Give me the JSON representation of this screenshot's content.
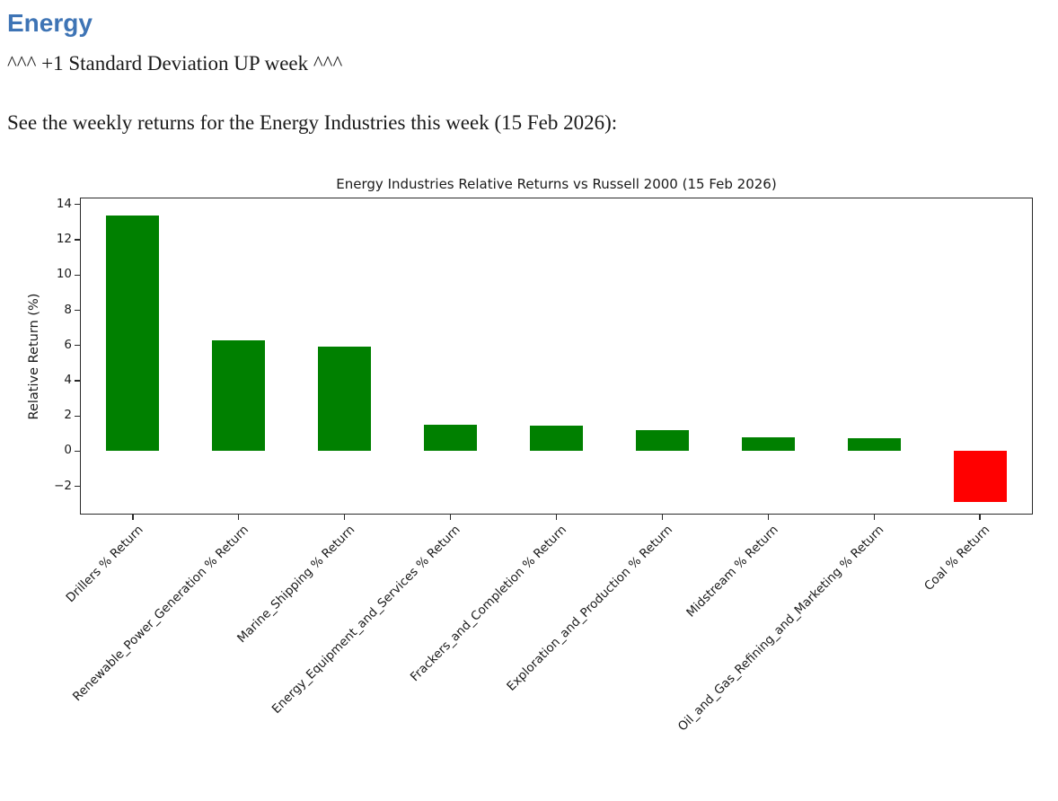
{
  "document": {
    "heading": "Energy",
    "stddev_line": "^^^ +1 Standard Deviation UP week ^^^",
    "intro_line": "See the weekly returns for the Energy Industries this week (15 Feb 2026):"
  },
  "colors": {
    "heading_blue": "#3E74B5",
    "positive_green": "#008000",
    "negative_red": "#FF0000",
    "axis": "#2a2a2a",
    "text": "#1a1a1a"
  },
  "chart_data": {
    "type": "bar",
    "title": "Energy Industries Relative Returns vs Russell 2000 (15 Feb 2026)",
    "xlabel": "",
    "ylabel": "Relative Return (%)",
    "categories": [
      "Drillers % Return",
      "Renewable_Power_Generation % Return",
      "Marine_Shipping % Return",
      "Energy_Equipment_and_Services % Return",
      "Frackers_and_Completion % Return",
      "Exploration_and_Production % Return",
      "Midstream % Return",
      "Oil_and_Gas_Refining_and_Marketing % Return",
      "Coal % Return"
    ],
    "values": [
      13.4,
      6.3,
      5.95,
      1.5,
      1.45,
      1.2,
      0.8,
      0.75,
      -2.9
    ],
    "bar_colors": [
      "#008000",
      "#008000",
      "#008000",
      "#008000",
      "#008000",
      "#008000",
      "#008000",
      "#008000",
      "#FF0000"
    ],
    "ylim": [
      -3.6,
      14.4
    ],
    "yticks": [
      -2,
      0,
      2,
      4,
      6,
      8,
      10,
      12,
      14
    ],
    "xtick_rotation": 45,
    "grid": false,
    "legend": false,
    "bar_width_fraction": 0.5
  }
}
